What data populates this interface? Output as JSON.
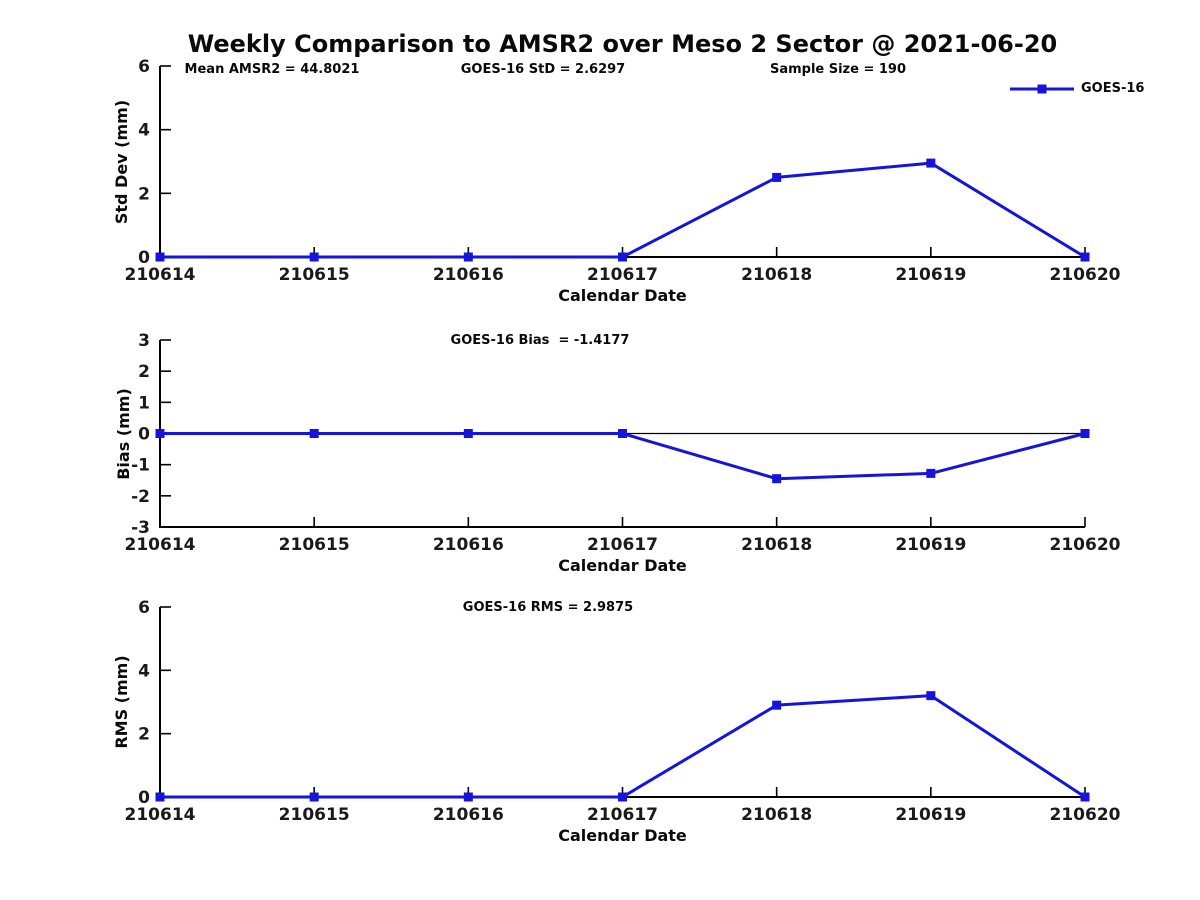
{
  "title": "Weekly Comparison to AMSR2 over Meso 2 Sector @ 2021-06-20",
  "colors": {
    "line": "#1414dc",
    "axis": "#000000",
    "text": "#1a1a1a",
    "background": "#ffffff"
  },
  "legend": {
    "label": "GOES-16"
  },
  "chart_data": [
    {
      "type": "line",
      "name": "std-dev",
      "categories": [
        "210614",
        "210615",
        "210616",
        "210617",
        "210618",
        "210619",
        "210620"
      ],
      "series": [
        {
          "name": "GOES-16",
          "values": [
            0,
            0,
            0,
            0,
            2.5,
            2.95,
            0
          ]
        }
      ],
      "ylabel": "Std Dev (mm)",
      "xlabel": "Calendar Date",
      "ylim": [
        0,
        6
      ],
      "yticks": [
        0,
        2,
        4,
        6
      ],
      "zero_line": false,
      "legend_position": "top-right",
      "annotations": [
        {
          "text": "Mean AMSR2 = 44.8021"
        },
        {
          "text": "GOES-16 StD = 2.6297"
        },
        {
          "text": "Sample Size = 190"
        }
      ]
    },
    {
      "type": "line",
      "name": "bias",
      "categories": [
        "210614",
        "210615",
        "210616",
        "210617",
        "210618",
        "210619",
        "210620"
      ],
      "series": [
        {
          "name": "GOES-16",
          "values": [
            0,
            0,
            0,
            0,
            -1.45,
            -1.28,
            0
          ]
        }
      ],
      "ylabel": "Bias (mm)",
      "xlabel": "Calendar Date",
      "ylim": [
        -3,
        3
      ],
      "yticks": [
        -3,
        -2,
        -1,
        0,
        1,
        2,
        3
      ],
      "zero_line": true,
      "annotations": [
        {
          "text": "GOES-16 Bias  = -1.4177"
        }
      ]
    },
    {
      "type": "line",
      "name": "rms",
      "categories": [
        "210614",
        "210615",
        "210616",
        "210617",
        "210618",
        "210619",
        "210620"
      ],
      "series": [
        {
          "name": "GOES-16",
          "values": [
            0,
            0,
            0,
            0,
            2.9,
            3.2,
            0
          ]
        }
      ],
      "ylabel": "RMS (mm)",
      "xlabel": "Calendar Date",
      "ylim": [
        0,
        6
      ],
      "yticks": [
        0,
        2,
        4,
        6
      ],
      "zero_line": false,
      "annotations": [
        {
          "text": "GOES-16 RMS = 2.9875"
        }
      ]
    }
  ]
}
